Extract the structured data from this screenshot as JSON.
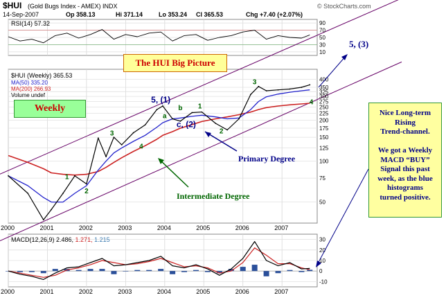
{
  "header": {
    "symbol": "$HUI",
    "name": "(Gold Bugs Index - AMEX) INDX",
    "date": "14-Sep-2007",
    "op": "Op 358.13",
    "hi": "Hi 371.14",
    "lo": "Lo 353.24",
    "cl": "Cl 365.53",
    "chg": "Chg +7.40 (+2.07%)",
    "watermark": "© StockCharts.com"
  },
  "annotations": {
    "big_picture": "The HUI Big Picture",
    "weekly": "Weekly",
    "target": "5, (3)",
    "primary_degree": "Primary Degree",
    "intermediate_degree": "Intermediate Degree",
    "note": [
      "Nice Long-term",
      "Rising",
      "Trend-channel.",
      "",
      "We got a Weekly",
      "MACD “BUY”",
      "Signal this past",
      "week, as the blue",
      "histograms",
      "turned positive."
    ]
  },
  "colors": {
    "price": "#000000",
    "ma50": "#2222cc",
    "ma200": "#cc2222",
    "channel": "#660066",
    "wave_green": "#006600",
    "wave_blue": "#000088",
    "histogram": "#2a4f9a",
    "note_bg": "#ffffa0",
    "title_bg": "#ffff99",
    "weekly_bg": "#99ff99"
  },
  "chart_data": [
    {
      "type": "line",
      "panel": "price",
      "title": "$HUI (Weekly) 365.53",
      "legend": [
        "$HUI (Weekly) 365.53",
        "MA(50) 335.20",
        "MA(200) 266.93",
        "Volume undef"
      ],
      "x": [
        2000,
        2000.5,
        2000.9,
        2001.1,
        2001.4,
        2001.7,
        2002.0,
        2002.3,
        2002.5,
        2002.7,
        2002.9,
        2003.2,
        2003.5,
        2003.8,
        2003.95,
        2004.2,
        2004.4,
        2004.7,
        2004.95,
        2005.3,
        2005.6,
        2005.9,
        2006.2,
        2006.4,
        2006.6,
        2006.9,
        2007.2,
        2007.5,
        2007.71
      ],
      "series": [
        {
          "name": "$HUI (Weekly)",
          "values": [
            78,
            58,
            37,
            44,
            58,
            78,
            68,
            148,
            108,
            150,
            132,
            162,
            185,
            240,
            255,
            205,
            197,
            228,
            230,
            190,
            170,
            205,
            310,
            355,
            330,
            335,
            340,
            350,
            365
          ]
        },
        {
          "name": "MA(50)",
          "values": [
            78,
            66,
            54,
            50,
            50,
            58,
            66,
            86,
            100,
            115,
            125,
            140,
            155,
            178,
            192,
            205,
            208,
            214,
            218,
            212,
            205,
            208,
            240,
            275,
            298,
            312,
            322,
            330,
            335
          ]
        },
        {
          "name": "MA(200)",
          "values": [
            110,
            98,
            88,
            82,
            80,
            79,
            80,
            84,
            90,
            98,
            106,
            118,
            130,
            145,
            155,
            165,
            175,
            186,
            196,
            205,
            212,
            220,
            230,
            240,
            248,
            255,
            260,
            264,
            267
          ]
        }
      ],
      "ylim": [
        35,
        475
      ],
      "yscale": "log",
      "yticks": [
        400,
        350,
        325,
        300,
        275,
        250,
        225,
        200,
        175,
        150,
        125,
        100,
        75,
        50
      ],
      "xticks": [
        "2000",
        "2001",
        "2002",
        "2003",
        "2004",
        "2005",
        "2006",
        "2007"
      ],
      "wave_labels": [
        {
          "text": "1",
          "x": 2001.5,
          "y": 74
        },
        {
          "text": "2",
          "x": 2002.0,
          "y": 58
        },
        {
          "text": "3",
          "x": 2002.65,
          "y": 155
        },
        {
          "text": "4",
          "x": 2003.4,
          "y": 124
        },
        {
          "text": "5, (1)",
          "x": 2003.9,
          "y": 270
        },
        {
          "text": "a",
          "x": 2004.0,
          "y": 208
        },
        {
          "text": "b",
          "x": 2004.4,
          "y": 238
        },
        {
          "text": "c, (2)",
          "x": 2004.55,
          "y": 178
        },
        {
          "text": "1",
          "x": 2004.9,
          "y": 244
        },
        {
          "text": "2",
          "x": 2005.45,
          "y": 160
        },
        {
          "text": "3",
          "x": 2006.3,
          "y": 368
        },
        {
          "text": "4",
          "x": 2007.75,
          "y": 262
        }
      ],
      "grid": true,
      "legend_position": "top-left"
    },
    {
      "type": "line",
      "panel": "rsi",
      "title": "RSI(14) 57.32",
      "yticks": [
        90,
        70,
        50,
        30,
        10
      ],
      "ylim": [
        0,
        100
      ],
      "x": [
        2000,
        2000.3,
        2000.6,
        2000.9,
        2001.2,
        2001.5,
        2001.8,
        2002.1,
        2002.4,
        2002.7,
        2003.0,
        2003.3,
        2003.6,
        2003.9,
        2004.2,
        2004.5,
        2004.8,
        2005.1,
        2005.4,
        2005.7,
        2006.0,
        2006.3,
        2006.6,
        2006.9,
        2007.2,
        2007.5,
        2007.71
      ],
      "values": [
        52,
        40,
        45,
        35,
        55,
        62,
        48,
        58,
        72,
        45,
        58,
        52,
        62,
        65,
        40,
        55,
        58,
        42,
        50,
        55,
        65,
        70,
        45,
        55,
        50,
        48,
        57
      ]
    },
    {
      "type": "line",
      "panel": "macd",
      "title": "MACD(12,26,9) 2.486, 1.271, 1.215",
      "yticks": [
        30,
        20,
        10,
        0,
        -10
      ],
      "ylim": [
        -15,
        35
      ],
      "x": [
        2000,
        2000.3,
        2000.6,
        2000.9,
        2001.2,
        2001.5,
        2001.8,
        2002.1,
        2002.4,
        2002.7,
        2003.0,
        2003.3,
        2003.6,
        2003.9,
        2004.2,
        2004.5,
        2004.8,
        2005.1,
        2005.4,
        2005.7,
        2006.0,
        2006.3,
        2006.6,
        2006.9,
        2007.2,
        2007.5,
        2007.71
      ],
      "series": [
        {
          "name": "MACD",
          "values": [
            0,
            -3,
            -5,
            -8,
            -2,
            3,
            4,
            8,
            12,
            5,
            6,
            8,
            10,
            14,
            5,
            3,
            6,
            2,
            -4,
            2,
            12,
            28,
            10,
            5,
            8,
            2,
            2.486
          ]
        },
        {
          "name": "Signal",
          "values": [
            0,
            -2,
            -4,
            -6,
            -4,
            1,
            3,
            6,
            10,
            8,
            6,
            7,
            9,
            12,
            8,
            4,
            5,
            3,
            -2,
            0,
            8,
            22,
            15,
            7,
            7,
            3,
            1.271
          ]
        },
        {
          "name": "Histogram",
          "values": [
            0,
            -1,
            -1,
            -2,
            2,
            2,
            1,
            2,
            2,
            -3,
            0,
            1,
            1,
            2,
            -3,
            -1,
            1,
            -1,
            -2,
            2,
            4,
            6,
            -5,
            -2,
            1,
            -1,
            1.215
          ]
        }
      ]
    }
  ]
}
